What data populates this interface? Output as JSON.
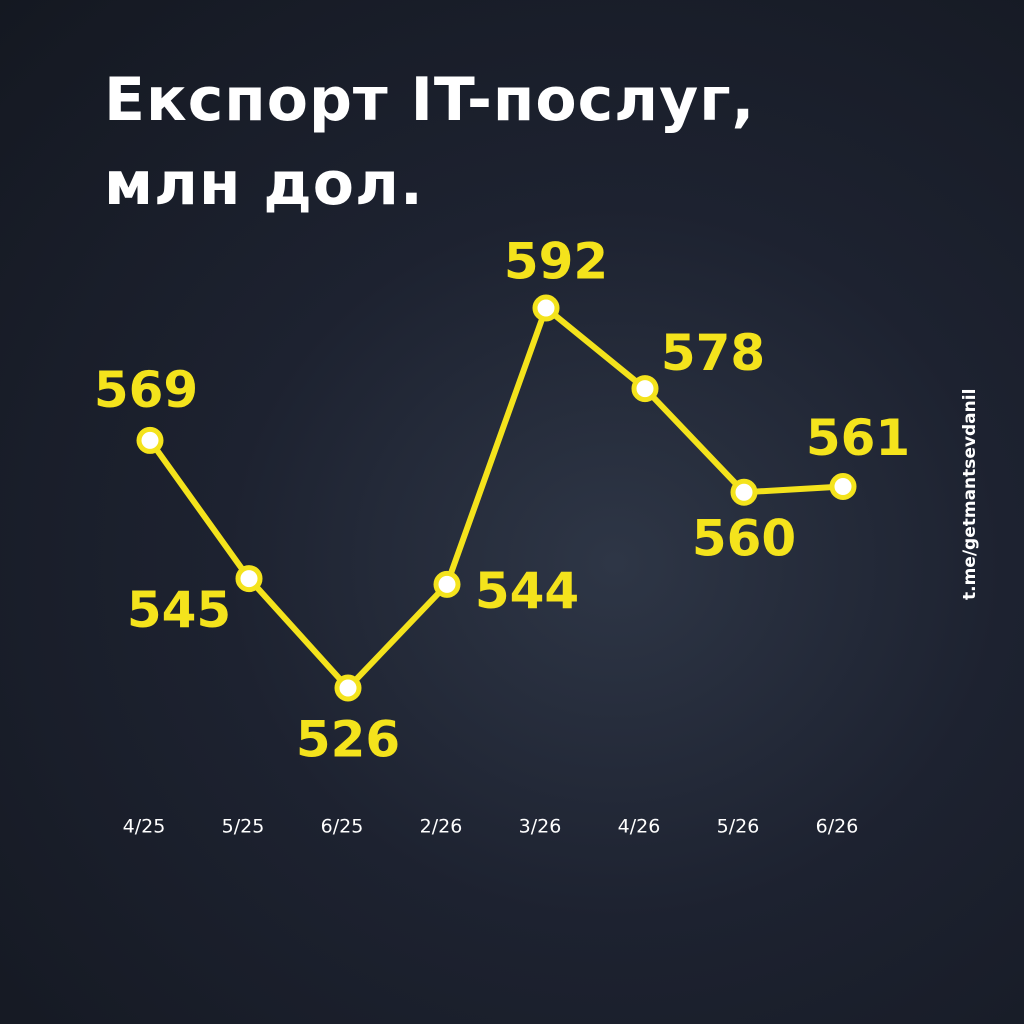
{
  "chart_data": {
    "type": "line",
    "title": "Експорт IT-послуг, млн дол.",
    "categories": [
      "4/25",
      "5/25",
      "6/25",
      "2/26",
      "3/26",
      "4/26",
      "5/26",
      "6/26"
    ],
    "values": [
      569,
      545,
      526,
      544,
      592,
      578,
      560,
      561
    ],
    "color": "#f4e31c",
    "watermark": "t.me/getmantsevdanil"
  }
}
